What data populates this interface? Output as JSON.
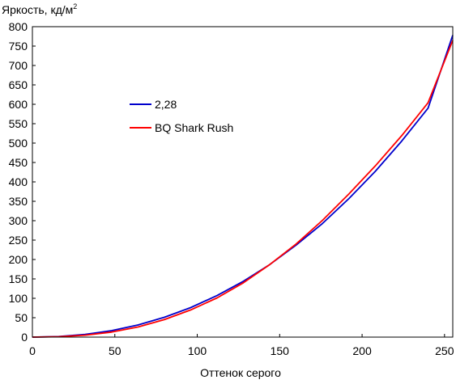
{
  "chart_data": {
    "type": "line",
    "title": "",
    "ylabel": "Яркость, кд/м",
    "ylabel_superscript": "2",
    "xlabel": "Оттенок серого",
    "xlim": [
      0,
      255
    ],
    "ylim": [
      0,
      800
    ],
    "xticks": [
      0,
      50,
      100,
      150,
      200,
      250
    ],
    "yticks": [
      0,
      50,
      100,
      150,
      200,
      250,
      300,
      350,
      400,
      450,
      500,
      550,
      600,
      650,
      700,
      750,
      800
    ],
    "grid": false,
    "legend_position": "center-left",
    "series": [
      {
        "name": "2,28",
        "color": "#0000cc",
        "x": [
          0,
          16,
          32,
          48,
          64,
          80,
          96,
          112,
          128,
          144,
          160,
          176,
          192,
          208,
          224,
          240,
          255
        ],
        "y": [
          0,
          1.4,
          6.8,
          16.6,
          31.2,
          51.0,
          76.1,
          107,
          144,
          187,
          237,
          293,
          357,
          427,
          505,
          590,
          778
        ]
      },
      {
        "name": "BQ Shark Rush",
        "color": "#ff0000",
        "x": [
          0,
          16,
          32,
          48,
          64,
          80,
          96,
          112,
          128,
          144,
          160,
          176,
          192,
          208,
          224,
          240,
          255
        ],
        "y": [
          0,
          1,
          5,
          13,
          26,
          45,
          70,
          101,
          140,
          187,
          240,
          301,
          369,
          441,
          519,
          604,
          765
        ]
      }
    ]
  }
}
